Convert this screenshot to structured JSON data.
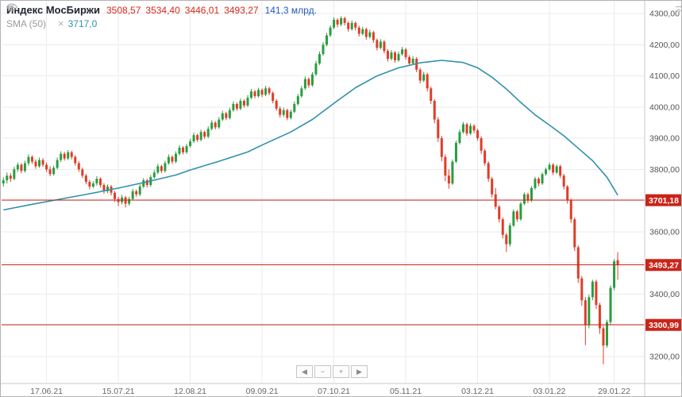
{
  "header": {
    "title": "Индекс МосБиржи",
    "ohlc": {
      "open": "3508,57",
      "high": "3534,40",
      "low": "3446,01",
      "close": "3493,27"
    },
    "volume": "141,3 млрд."
  },
  "indicator": {
    "label": "SMA (50)",
    "value": "3717,0"
  },
  "nav": {
    "prev": "◀",
    "zoom_out": "−",
    "zoom_in": "+",
    "next": "▶"
  },
  "chart_data": {
    "type": "candlestick",
    "title": "Индекс МосБиржи",
    "ylabel": "",
    "xlabel": "",
    "ylim": [
      3113,
      4341
    ],
    "grid": true,
    "right_margin_slots": 7,
    "y_ticks": [
      {
        "v": 4300,
        "label": "4300,00"
      },
      {
        "v": 4200,
        "label": "4200,00"
      },
      {
        "v": 4100,
        "label": "4100,00"
      },
      {
        "v": 4000,
        "label": "4000,00"
      },
      {
        "v": 3900,
        "label": "3900,00"
      },
      {
        "v": 3800,
        "label": "3800,00"
      },
      {
        "v": 3700,
        "label": "3700,00"
      },
      {
        "v": 3600,
        "label": "3600,00"
      },
      {
        "v": 3500,
        "label": "3500,00"
      },
      {
        "v": 3400,
        "label": "3400,00"
      },
      {
        "v": 3300,
        "label": "3300,00"
      },
      {
        "v": 3200,
        "label": "3200,00"
      }
    ],
    "price_lines": [
      {
        "value": 3701.18,
        "label": "3701,18"
      },
      {
        "value": 3493.27,
        "label": "3493,27"
      },
      {
        "value": 3300.99,
        "label": "3300,99"
      }
    ],
    "x_labels": [
      {
        "index": 12,
        "label": "17.06.21"
      },
      {
        "index": 32,
        "label": "15.07.21"
      },
      {
        "index": 52,
        "label": "12.08.21"
      },
      {
        "index": 72,
        "label": "09.09.21"
      },
      {
        "index": 92,
        "label": "07.10.21"
      },
      {
        "index": 112,
        "label": "05.11.21"
      },
      {
        "index": 132,
        "label": "03.12.21"
      },
      {
        "index": 152,
        "label": "03.01.22"
      },
      {
        "index": 170,
        "label": "29.01.22"
      }
    ],
    "candles": [
      [
        3755,
        3775,
        3745,
        3765
      ],
      [
        3765,
        3790,
        3755,
        3780
      ],
      [
        3780,
        3788,
        3760,
        3770
      ],
      [
        3770,
        3808,
        3765,
        3800
      ],
      [
        3800,
        3822,
        3792,
        3815
      ],
      [
        3815,
        3820,
        3788,
        3795
      ],
      [
        3795,
        3828,
        3790,
        3820
      ],
      [
        3820,
        3848,
        3812,
        3840
      ],
      [
        3840,
        3845,
        3818,
        3825
      ],
      [
        3825,
        3832,
        3802,
        3810
      ],
      [
        3810,
        3838,
        3805,
        3830
      ],
      [
        3830,
        3836,
        3808,
        3815
      ],
      [
        3815,
        3822,
        3792,
        3800
      ],
      [
        3800,
        3810,
        3778,
        3785
      ],
      [
        3785,
        3812,
        3780,
        3805
      ],
      [
        3805,
        3838,
        3800,
        3830
      ],
      [
        3830,
        3858,
        3824,
        3850
      ],
      [
        3850,
        3856,
        3828,
        3835
      ],
      [
        3835,
        3862,
        3830,
        3855
      ],
      [
        3855,
        3860,
        3832,
        3840
      ],
      [
        3840,
        3846,
        3812,
        3820
      ],
      [
        3820,
        3826,
        3792,
        3800
      ],
      [
        3800,
        3806,
        3772,
        3780
      ],
      [
        3780,
        3786,
        3752,
        3760
      ],
      [
        3760,
        3766,
        3736,
        3745
      ],
      [
        3745,
        3762,
        3740,
        3755
      ],
      [
        3755,
        3778,
        3748,
        3770
      ],
      [
        3770,
        3775,
        3742,
        3750
      ],
      [
        3750,
        3756,
        3722,
        3730
      ],
      [
        3730,
        3752,
        3724,
        3745
      ],
      [
        3745,
        3750,
        3716,
        3725
      ],
      [
        3725,
        3731,
        3696,
        3705
      ],
      [
        3705,
        3712,
        3682,
        3695
      ],
      [
        3695,
        3718,
        3688,
        3710
      ],
      [
        3710,
        3715,
        3678,
        3690
      ],
      [
        3690,
        3712,
        3684,
        3705
      ],
      [
        3705,
        3738,
        3700,
        3730
      ],
      [
        3730,
        3736,
        3712,
        3720
      ],
      [
        3720,
        3752,
        3714,
        3745
      ],
      [
        3745,
        3772,
        3740,
        3765
      ],
      [
        3765,
        3770,
        3742,
        3750
      ],
      [
        3750,
        3782,
        3744,
        3775
      ],
      [
        3775,
        3798,
        3770,
        3790
      ],
      [
        3790,
        3818,
        3785,
        3810
      ],
      [
        3810,
        3815,
        3788,
        3795
      ],
      [
        3795,
        3828,
        3790,
        3820
      ],
      [
        3820,
        3848,
        3815,
        3840
      ],
      [
        3840,
        3845,
        3818,
        3825
      ],
      [
        3825,
        3858,
        3820,
        3850
      ],
      [
        3850,
        3878,
        3845,
        3870
      ],
      [
        3870,
        3875,
        3848,
        3855
      ],
      [
        3855,
        3882,
        3850,
        3875
      ],
      [
        3875,
        3898,
        3870,
        3890
      ],
      [
        3890,
        3918,
        3885,
        3910
      ],
      [
        3910,
        3915,
        3888,
        3895
      ],
      [
        3895,
        3928,
        3890,
        3920
      ],
      [
        3920,
        3925,
        3898,
        3905
      ],
      [
        3905,
        3938,
        3900,
        3930
      ],
      [
        3930,
        3958,
        3925,
        3950
      ],
      [
        3950,
        3955,
        3928,
        3935
      ],
      [
        3935,
        3968,
        3930,
        3960
      ],
      [
        3960,
        3988,
        3955,
        3980
      ],
      [
        3980,
        3985,
        3958,
        3965
      ],
      [
        3965,
        3998,
        3960,
        3990
      ],
      [
        3990,
        4018,
        3985,
        4010
      ],
      [
        4010,
        4015,
        3988,
        3995
      ],
      [
        3995,
        4028,
        3990,
        4020
      ],
      [
        4020,
        4025,
        3998,
        4005
      ],
      [
        4005,
        4038,
        4000,
        4030
      ],
      [
        4030,
        4058,
        4025,
        4050
      ],
      [
        4050,
        4055,
        4028,
        4035
      ],
      [
        4035,
        4062,
        4030,
        4055
      ],
      [
        4055,
        4060,
        4032,
        4040
      ],
      [
        4040,
        4068,
        4035,
        4060
      ],
      [
        4060,
        4065,
        4038,
        4045
      ],
      [
        4045,
        4050,
        4012,
        4020
      ],
      [
        4020,
        4026,
        3988,
        3995
      ],
      [
        3995,
        4002,
        3966,
        3975
      ],
      [
        3975,
        3998,
        3968,
        3990
      ],
      [
        3990,
        3995,
        3958,
        3965
      ],
      [
        3965,
        3992,
        3960,
        3985
      ],
      [
        3985,
        4018,
        3980,
        4010
      ],
      [
        4010,
        4042,
        4005,
        4035
      ],
      [
        4035,
        4068,
        4030,
        4060
      ],
      [
        4060,
        4098,
        4055,
        4090
      ],
      [
        4090,
        4095,
        4062,
        4070
      ],
      [
        4070,
        4112,
        4065,
        4105
      ],
      [
        4105,
        4148,
        4100,
        4140
      ],
      [
        4140,
        4178,
        4135,
        4170
      ],
      [
        4170,
        4208,
        4165,
        4200
      ],
      [
        4200,
        4238,
        4195,
        4230
      ],
      [
        4230,
        4262,
        4225,
        4255
      ],
      [
        4255,
        4288,
        4250,
        4280
      ],
      [
        4280,
        4285,
        4256,
        4265
      ],
      [
        4265,
        4292,
        4260,
        4285
      ],
      [
        4285,
        4290,
        4262,
        4270
      ],
      [
        4270,
        4276,
        4242,
        4250
      ],
      [
        4250,
        4278,
        4245,
        4270
      ],
      [
        4270,
        4275,
        4246,
        4255
      ],
      [
        4255,
        4261,
        4226,
        4235
      ],
      [
        4235,
        4258,
        4230,
        4250
      ],
      [
        4250,
        4255,
        4216,
        4225
      ],
      [
        4225,
        4248,
        4220,
        4240
      ],
      [
        4240,
        4245,
        4206,
        4215
      ],
      [
        4215,
        4220,
        4182,
        4190
      ],
      [
        4190,
        4218,
        4185,
        4210
      ],
      [
        4210,
        4215,
        4172,
        4180
      ],
      [
        4180,
        4186,
        4146,
        4155
      ],
      [
        4155,
        4183,
        4150,
        4175
      ],
      [
        4175,
        4180,
        4142,
        4150
      ],
      [
        4150,
        4178,
        4145,
        4170
      ],
      [
        4170,
        4193,
        4165,
        4185
      ],
      [
        4185,
        4190,
        4152,
        4160
      ],
      [
        4160,
        4166,
        4132,
        4140
      ],
      [
        4140,
        4163,
        4135,
        4155
      ],
      [
        4155,
        4160,
        4112,
        4120
      ],
      [
        4120,
        4126,
        4076,
        4085
      ],
      [
        4085,
        4113,
        4080,
        4105
      ],
      [
        4105,
        4110,
        4050,
        4060
      ],
      [
        4060,
        4066,
        4010,
        4020
      ],
      [
        4020,
        4026,
        3948,
        3960
      ],
      [
        3960,
        3968,
        3888,
        3900
      ],
      [
        3900,
        3908,
        3826,
        3840
      ],
      [
        3840,
        3848,
        3762,
        3780
      ],
      [
        3780,
        3800,
        3738,
        3755
      ],
      [
        3755,
        3832,
        3750,
        3825
      ],
      [
        3825,
        3892,
        3820,
        3885
      ],
      [
        3885,
        3928,
        3880,
        3920
      ],
      [
        3920,
        3952,
        3915,
        3945
      ],
      [
        3945,
        3950,
        3908,
        3915
      ],
      [
        3915,
        3948,
        3910,
        3940
      ],
      [
        3940,
        3945,
        3916,
        3925
      ],
      [
        3925,
        3930,
        3892,
        3900
      ],
      [
        3900,
        3906,
        3850,
        3860
      ],
      [
        3860,
        3866,
        3812,
        3820
      ],
      [
        3820,
        3826,
        3760,
        3770
      ],
      [
        3770,
        3776,
        3710,
        3720
      ],
      [
        3720,
        3740,
        3672,
        3680
      ],
      [
        3680,
        3686,
        3630,
        3640
      ],
      [
        3640,
        3646,
        3578,
        3590
      ],
      [
        3590,
        3596,
        3535,
        3560
      ],
      [
        3560,
        3628,
        3552,
        3620
      ],
      [
        3620,
        3672,
        3615,
        3665
      ],
      [
        3665,
        3670,
        3632,
        3640
      ],
      [
        3640,
        3696,
        3635,
        3690
      ],
      [
        3690,
        3726,
        3685,
        3720
      ],
      [
        3720,
        3725,
        3692,
        3700
      ],
      [
        3700,
        3746,
        3695,
        3740
      ],
      [
        3740,
        3776,
        3735,
        3770
      ],
      [
        3770,
        3775,
        3746,
        3755
      ],
      [
        3755,
        3790,
        3750,
        3785
      ],
      [
        3785,
        3806,
        3780,
        3800
      ],
      [
        3800,
        3822,
        3795,
        3815
      ],
      [
        3815,
        3820,
        3782,
        3790
      ],
      [
        3790,
        3816,
        3785,
        3810
      ],
      [
        3810,
        3815,
        3772,
        3780
      ],
      [
        3780,
        3786,
        3736,
        3745
      ],
      [
        3745,
        3750,
        3690,
        3700
      ],
      [
        3700,
        3706,
        3628,
        3640
      ],
      [
        3640,
        3646,
        3538,
        3550
      ],
      [
        3550,
        3556,
        3436,
        3450
      ],
      [
        3450,
        3458,
        3362,
        3380
      ],
      [
        3380,
        3390,
        3236,
        3300
      ],
      [
        3300,
        3398,
        3290,
        3390
      ],
      [
        3390,
        3446,
        3380,
        3440
      ],
      [
        3440,
        3446,
        3352,
        3365
      ],
      [
        3365,
        3372,
        3272,
        3290
      ],
      [
        3290,
        3298,
        3175,
        3235
      ],
      [
        3235,
        3318,
        3228,
        3310
      ],
      [
        3310,
        3428,
        3302,
        3420
      ],
      [
        3420,
        3512,
        3412,
        3505
      ],
      [
        3508.57,
        3534.4,
        3446.01,
        3493.27
      ]
    ],
    "sma": {
      "period": 50,
      "points": [
        [
          0,
          3670
        ],
        [
          8,
          3688
        ],
        [
          16,
          3705
        ],
        [
          24,
          3722
        ],
        [
          32,
          3740
        ],
        [
          40,
          3760
        ],
        [
          48,
          3782
        ],
        [
          52,
          3798
        ],
        [
          60,
          3826
        ],
        [
          68,
          3856
        ],
        [
          72,
          3878
        ],
        [
          80,
          3920
        ],
        [
          86,
          3960
        ],
        [
          92,
          4012
        ],
        [
          98,
          4062
        ],
        [
          104,
          4100
        ],
        [
          110,
          4126
        ],
        [
          116,
          4142
        ],
        [
          122,
          4150
        ],
        [
          128,
          4143
        ],
        [
          132,
          4126
        ],
        [
          136,
          4096
        ],
        [
          140,
          4058
        ],
        [
          144,
          4015
        ],
        [
          148,
          3975
        ],
        [
          152,
          3942
        ],
        [
          156,
          3908
        ],
        [
          160,
          3868
        ],
        [
          164,
          3828
        ],
        [
          168,
          3775
        ],
        [
          171,
          3717
        ]
      ]
    },
    "colors": {
      "up": "#2a9d3f",
      "down": "#e03c28",
      "sma": "#2f91ab",
      "level": "#c92419",
      "grid": "#ebebeb",
      "axis_text": "#555555",
      "date_text": "#666666",
      "badge_text": "#ffffff",
      "border": "#c9c9c9"
    }
  }
}
